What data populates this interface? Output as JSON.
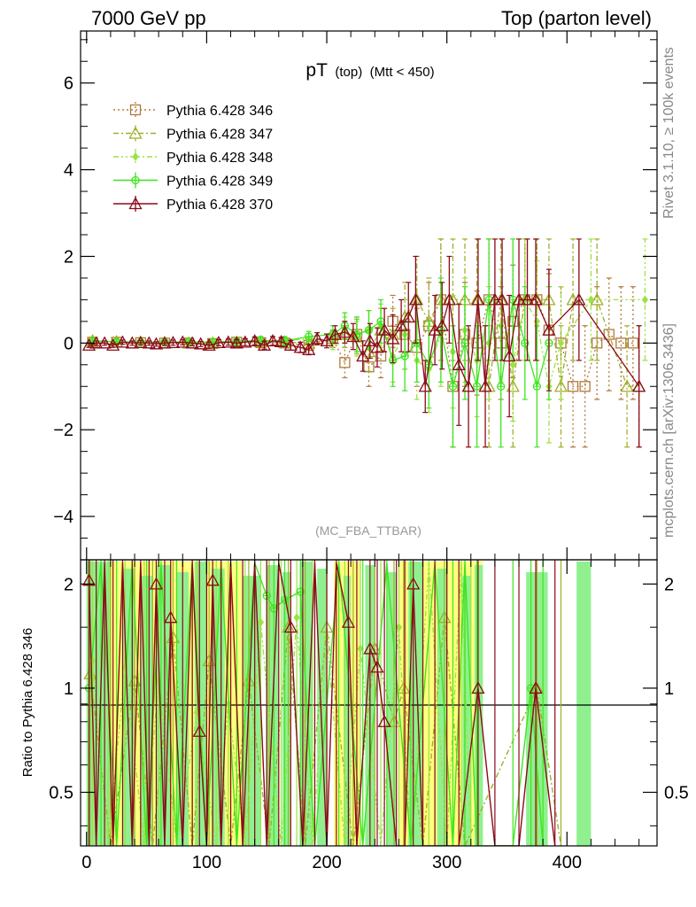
{
  "header": {
    "left": "7000 GeV pp",
    "right": "Top (parton level)"
  },
  "side_text": {
    "rivet": "Rivet 3.1.10, ≥ 100k events",
    "mcplots": "mcplots.cern.ch [arXiv:1306.3436]"
  },
  "plot_title": {
    "main": "pT",
    "sub1": "(top)",
    "sub2": "(Mtt < 450)"
  },
  "analysis_label": "(MC_FBA_TTBAR)",
  "colors": {
    "s346": "#b07a3b",
    "s347": "#a2ad28",
    "s348": "#9be244",
    "s349": "#3ee51f",
    "s370": "#8b0a1a",
    "band_yellow": "#ffff80",
    "band_green": "#90f090"
  },
  "chart_data": [
    {
      "type": "line",
      "panel": "main",
      "xlim": [
        -5,
        475
      ],
      "ylim": [
        -5,
        7.2
      ],
      "yticks": [
        -4,
        -2,
        0,
        2,
        4,
        6
      ],
      "ytick_labels": [
        "−4",
        "−2",
        "0",
        "2",
        "4",
        "6"
      ],
      "legend_position": "top-left",
      "series": [
        {
          "name": "Pythia 6.428 346",
          "marker": "square",
          "dash": "2,3",
          "x": [
            5,
            25,
            45,
            65,
            85,
            105,
            125,
            145,
            165,
            185,
            205,
            215,
            225,
            235,
            245,
            255,
            265,
            275,
            285,
            295,
            305,
            315,
            325,
            335,
            345,
            355,
            365,
            375,
            385,
            395,
            405,
            415,
            425,
            435,
            445,
            455
          ],
          "y": [
            0.02,
            0.02,
            0.01,
            0.0,
            0.0,
            -0.01,
            0.02,
            0.01,
            0.0,
            -0.05,
            0.1,
            -0.45,
            0.2,
            -0.55,
            -0.3,
            0.5,
            0.2,
            -0.1,
            0.4,
            1.0,
            -1.0,
            0.2,
            0.0,
            1.0,
            0.0,
            0.5,
            1.0,
            1.0,
            0.3,
            0.0,
            -1.0,
            -1.0,
            0.0,
            0.2,
            0.0,
            0.0
          ],
          "err": [
            0.06,
            0.06,
            0.06,
            0.06,
            0.07,
            0.07,
            0.08,
            0.09,
            0.1,
            0.12,
            0.2,
            0.35,
            0.4,
            0.45,
            0.5,
            0.6,
            0.8,
            0.9,
            1.0,
            1.4,
            1.4,
            1.2,
            1.2,
            1.4,
            1.3,
            1.3,
            1.4,
            1.4,
            1.3,
            1.3,
            1.4,
            1.4,
            1.3,
            1.3,
            1.3,
            1.3
          ]
        },
        {
          "name": "Pythia 6.428 347",
          "marker": "triangle",
          "dash": "6,3,2,3",
          "x": [
            5,
            25,
            45,
            65,
            85,
            105,
            125,
            145,
            165,
            185,
            205,
            215,
            225,
            235,
            245,
            255,
            265,
            275,
            285,
            295,
            305,
            315,
            325,
            335,
            345,
            355,
            365,
            375,
            385,
            395,
            405,
            425,
            450,
            460
          ],
          "y": [
            0.05,
            0.03,
            0.02,
            0.01,
            0.0,
            0.0,
            0.02,
            0.03,
            0.02,
            0.0,
            0.1,
            0.2,
            0.15,
            -0.2,
            0.3,
            0.2,
            0.6,
            1.0,
            0.5,
            1.0,
            1.0,
            1.0,
            1.0,
            -1.0,
            1.0,
            -1.0,
            1.0,
            1.0,
            1.0,
            -1.0,
            1.0,
            1.0,
            -1.0,
            -1.0
          ],
          "err": [
            0.06,
            0.06,
            0.06,
            0.06,
            0.07,
            0.07,
            0.08,
            0.09,
            0.1,
            0.12,
            0.2,
            0.3,
            0.4,
            0.45,
            0.5,
            0.6,
            0.8,
            1.0,
            1.0,
            1.4,
            1.4,
            1.4,
            1.4,
            1.4,
            1.4,
            1.4,
            1.4,
            1.4,
            1.4,
            1.4,
            1.4,
            1.4,
            1.4,
            1.4
          ]
        },
        {
          "name": "Pythia 6.428 348",
          "marker": "diamond",
          "dash": "6,3,2,3,2,3",
          "x": [
            5,
            25,
            45,
            65,
            85,
            105,
            125,
            145,
            165,
            185,
            205,
            215,
            225,
            235,
            245,
            255,
            265,
            275,
            285,
            295,
            305,
            315,
            325,
            335,
            345,
            355,
            365,
            375,
            385,
            395,
            420,
            465
          ],
          "y": [
            0.04,
            0.04,
            0.02,
            0.01,
            0.02,
            0.03,
            0.03,
            0.05,
            0.05,
            0.1,
            0.05,
            0.3,
            0.1,
            0.3,
            0.4,
            -0.3,
            0.2,
            -0.4,
            -0.6,
            0.2,
            -0.2,
            0.3,
            -0.4,
            0.0,
            0.4,
            -0.5,
            1.0,
            0.5,
            -1.0,
            0.0,
            1.0,
            1.0
          ],
          "err": [
            0.06,
            0.06,
            0.06,
            0.06,
            0.07,
            0.07,
            0.08,
            0.09,
            0.1,
            0.12,
            0.2,
            0.3,
            0.4,
            0.45,
            0.5,
            0.6,
            0.8,
            0.9,
            1.0,
            1.2,
            1.3,
            1.2,
            1.3,
            1.3,
            1.3,
            1.3,
            1.4,
            1.4,
            1.3,
            1.3,
            1.4,
            1.4
          ]
        },
        {
          "name": "Pythia 6.428 349",
          "marker": "circle-cross",
          "dash": "",
          "x": [
            5,
            25,
            45,
            65,
            85,
            105,
            125,
            145,
            165,
            185,
            205,
            215,
            225,
            235,
            245,
            255,
            265,
            275,
            285,
            295,
            305,
            315,
            325,
            335,
            345,
            355,
            365,
            375,
            385
          ],
          "y": [
            0.05,
            0.03,
            0.02,
            0.02,
            0.03,
            0.02,
            0.04,
            0.06,
            0.05,
            0.15,
            0.2,
            0.4,
            0.2,
            0.3,
            0.5,
            -0.4,
            -0.3,
            0.0,
            -0.5,
            0.3,
            -1.0,
            0.0,
            -1.0,
            1.0,
            -1.0,
            1.0,
            0.0,
            -1.0,
            0.0
          ],
          "err": [
            0.06,
            0.06,
            0.06,
            0.06,
            0.07,
            0.07,
            0.08,
            0.09,
            0.1,
            0.12,
            0.2,
            0.3,
            0.4,
            0.45,
            0.5,
            0.6,
            0.8,
            0.9,
            1.0,
            1.2,
            1.4,
            1.3,
            1.4,
            1.4,
            1.4,
            1.4,
            1.3,
            1.4,
            1.3
          ]
        },
        {
          "name": "Pythia 6.428 370",
          "marker": "triangle",
          "dash": "",
          "x": [
            2,
            8,
            15,
            22,
            30,
            38,
            45,
            52,
            58,
            65,
            72,
            80,
            88,
            95,
            102,
            110,
            118,
            125,
            132,
            140,
            148,
            155,
            162,
            170,
            178,
            185,
            192,
            200,
            207,
            215,
            222,
            230,
            236,
            242,
            248,
            255,
            262,
            268,
            274,
            282,
            290,
            296,
            302,
            310,
            318,
            326,
            332,
            340,
            346,
            352,
            360,
            367,
            374,
            385,
            410,
            460
          ],
          "y": [
            -0.05,
            0.0,
            0.0,
            -0.05,
            0.02,
            0.0,
            0.01,
            0.0,
            -0.02,
            0.0,
            0.01,
            0.02,
            0.0,
            -0.02,
            -0.05,
            0.01,
            0.02,
            0.0,
            0.02,
            0.05,
            -0.05,
            0.05,
            0.03,
            -0.05,
            -0.1,
            -0.15,
            0.1,
            0.05,
            0.2,
            0.25,
            0.15,
            -0.3,
            0.05,
            -0.1,
            0.3,
            0.1,
            0.4,
            0.6,
            1.0,
            -1.0,
            0.3,
            0.4,
            1.0,
            -0.5,
            -1.0,
            1.0,
            -1.0,
            1.0,
            1.0,
            -0.3,
            1.0,
            1.0,
            1.0,
            0.3,
            1.0,
            -1.0
          ],
          "err": [
            0.05,
            0.05,
            0.05,
            0.05,
            0.05,
            0.05,
            0.05,
            0.05,
            0.05,
            0.05,
            0.06,
            0.06,
            0.06,
            0.06,
            0.07,
            0.07,
            0.07,
            0.08,
            0.08,
            0.09,
            0.09,
            0.1,
            0.1,
            0.11,
            0.12,
            0.12,
            0.14,
            0.16,
            0.2,
            0.25,
            0.3,
            0.35,
            0.4,
            0.45,
            0.5,
            0.55,
            0.6,
            0.8,
            1.0,
            0.6,
            0.8,
            1.0,
            1.0,
            1.4,
            1.4,
            1.4,
            1.4,
            1.4,
            1.4,
            1.4,
            1.4,
            1.4,
            1.4,
            1.4,
            1.4,
            1.4
          ]
        }
      ]
    },
    {
      "type": "line",
      "panel": "ratio",
      "ylabel": "Ratio to Pythia 6.428 346",
      "xlim": [
        -5,
        475
      ],
      "ylim": [
        0.35,
        2.35
      ],
      "yticks": [
        0.5,
        1,
        2
      ],
      "ytick_labels": [
        "0.5",
        "1",
        "2"
      ],
      "xticks": [
        0,
        100,
        200,
        300,
        400
      ],
      "xtick_labels": [
        "0",
        "100",
        "200",
        "300",
        "400"
      ],
      "reference_line": 1,
      "series": [
        {
          "name": "Pythia 6.428 370",
          "x": [
            2,
            8,
            15,
            22,
            30,
            38,
            45,
            52,
            58,
            65,
            70,
            80,
            88,
            94,
            100,
            105,
            112,
            120,
            130,
            140,
            150,
            160,
            170,
            180,
            190,
            200,
            208,
            218,
            225,
            236,
            242,
            248,
            258,
            265,
            272,
            280,
            290,
            300,
            310,
            326,
            340,
            360,
            374,
            390
          ],
          "y": [
            2.05,
            0.3,
            2.3,
            0.3,
            2.3,
            0.3,
            2.3,
            0.3,
            2.0,
            0.3,
            1.6,
            0.3,
            2.3,
            0.75,
            0.3,
            2.05,
            0.3,
            2.3,
            0.3,
            2.3,
            0.3,
            2.3,
            1.5,
            0.3,
            2.3,
            0.3,
            2.3,
            1.55,
            0.3,
            1.3,
            1.15,
            0.8,
            0.3,
            0.3,
            2.0,
            0.3,
            0.3,
            0.3,
            0.3,
            1.0,
            0.3,
            0.3,
            1.0,
            0.3
          ]
        },
        {
          "name": "Pythia 6.428 349",
          "x": [
            2,
            12,
            25,
            38,
            50,
            62,
            75,
            88,
            100,
            112,
            125,
            140,
            150,
            156,
            165,
            178,
            190,
            210,
            230,
            250,
            270,
            290,
            305,
            315,
            325,
            355,
            370,
            380
          ],
          "y": [
            1.0,
            2.3,
            0.3,
            2.3,
            0.3,
            2.3,
            0.3,
            2.3,
            0.3,
            2.3,
            0.3,
            2.3,
            1.85,
            1.7,
            1.8,
            1.9,
            0.3,
            2.3,
            0.3,
            2.3,
            0.3,
            2.3,
            0.3,
            2.3,
            0.3,
            0.3,
            1.0,
            0.3
          ]
        },
        {
          "name": "Pythia 6.428 348",
          "x": [
            5,
            18,
            32,
            48,
            60,
            75,
            92,
            108,
            118,
            132,
            145,
            162,
            175,
            188,
            200,
            215,
            228,
            245,
            260,
            270,
            285,
            300,
            312,
            320
          ],
          "y": [
            1.2,
            0.3,
            1.15,
            0.3,
            1.05,
            0.3,
            0.85,
            0.3,
            0.9,
            0.3,
            1.55,
            0.3,
            1.6,
            0.3,
            1.4,
            0.3,
            1.3,
            0.3,
            1.5,
            0.3,
            2.3,
            0.3,
            2.3,
            0.3
          ]
        },
        {
          "name": "Pythia 6.428 347",
          "x": [
            3,
            20,
            40,
            55,
            72,
            88,
            102,
            120,
            135,
            152,
            168,
            182,
            200,
            222,
            240,
            256,
            264,
            280,
            298,
            315,
            375,
            395
          ],
          "y": [
            1.1,
            0.3,
            1.05,
            0.3,
            1.4,
            0.3,
            1.2,
            0.3,
            1.05,
            0.3,
            1.5,
            0.3,
            1.5,
            0.3,
            1.3,
            0.8,
            1.0,
            0.3,
            1.6,
            0.3,
            1.0,
            0.3
          ]
        }
      ]
    }
  ]
}
